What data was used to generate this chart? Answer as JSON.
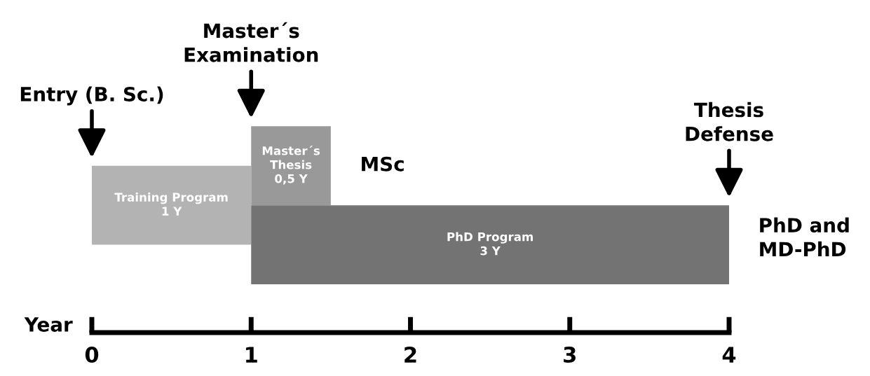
{
  "chart_data": {
    "type": "bar",
    "orientation": "horizontal",
    "categories": [
      null,
      null,
      null
    ],
    "xlabel": "Year",
    "xlim": [
      0,
      4
    ],
    "xticks": [
      0,
      1,
      2,
      3,
      4
    ],
    "values": [
      0.5,
      1,
      3
    ],
    "base": [
      1,
      0,
      1
    ],
    "colors": [
      "#999999",
      "#b3b3b3",
      "#737373"
    ],
    "value_labels": [
      "Master´s\nThesis\n0,5 Y",
      "Training Program\n1 Y",
      "PhD Program\n3 Y"
    ],
    "annotations": [
      "Entry (B. Sc.)",
      {
        "text": "Master´s\nExamination",
        "x": 1
      },
      {
        "text": "Thesis\nDefense",
        "x": 4
      },
      "MSc",
      "PhD and\nMD-PhD"
    ]
  }
}
